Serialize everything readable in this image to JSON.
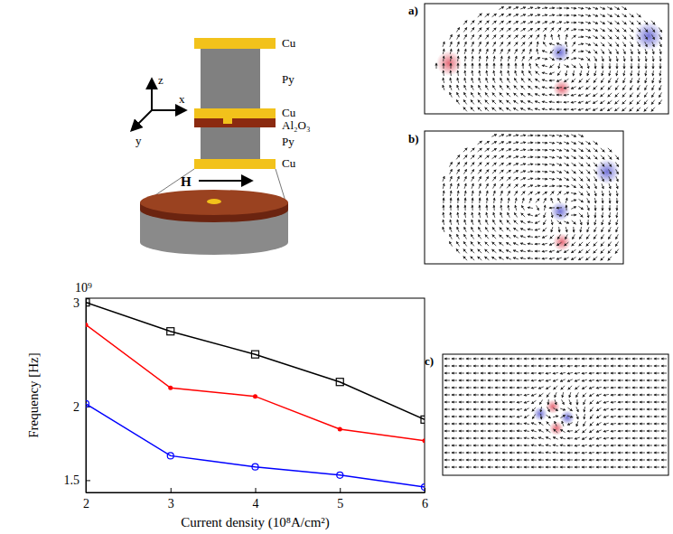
{
  "chart_data": {
    "type": "line",
    "xlabel": "Current density (10⁸A/cm²)",
    "ylabel": "Frequency [Hz]",
    "annotations": [
      "10⁹"
    ],
    "x": [
      2,
      3,
      4,
      5,
      6
    ],
    "xlim": [
      2,
      6
    ],
    "xticks": [
      2,
      3,
      4,
      5,
      6
    ],
    "ylim": [
      1.43,
      3.05
    ],
    "yticks": [
      1.5,
      2,
      3
    ],
    "log": "y",
    "grid": false,
    "series": [
      {
        "color": "#000000",
        "marker": "square",
        "values": [
          3.0,
          2.68,
          2.45,
          2.2,
          1.9
        ]
      },
      {
        "color": "#ff0000",
        "marker": "dot",
        "values": [
          2.75,
          2.15,
          2.08,
          1.83,
          1.75
        ]
      },
      {
        "color": "#0000ff",
        "marker": "circle",
        "values": [
          2.02,
          1.65,
          1.58,
          1.53,
          1.46
        ]
      }
    ]
  },
  "diagram": {
    "axis_labels": [
      "z",
      "x",
      "y"
    ],
    "layers": [
      "Cu",
      "Py",
      "Cu",
      "Al₂O₃",
      "Py",
      "Cu"
    ],
    "field_label": "H"
  },
  "panels": [
    "a)",
    "b)",
    "c)"
  ]
}
